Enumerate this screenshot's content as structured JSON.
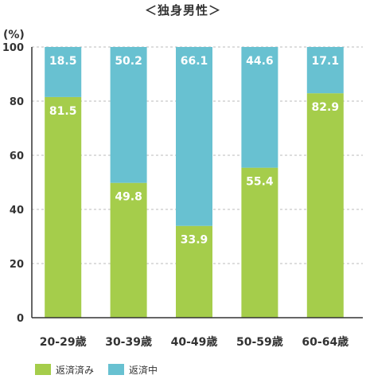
{
  "title": "＜独身男性＞",
  "unit": "(%)",
  "colors": {
    "repaid": "#a5cd4b",
    "repaying": "#68c1d1",
    "grid": "#bbbbbb",
    "axis": "#333333"
  },
  "legend": [
    {
      "label": "返済済み",
      "color": "#a5cd4b"
    },
    {
      "label": "返済中",
      "color": "#68c1d1"
    }
  ],
  "chart_data": {
    "type": "bar",
    "stacked": true,
    "title": "＜独身男性＞",
    "ylabel": "(%)",
    "ylim": [
      0,
      100
    ],
    "yticks": [
      0,
      20,
      40,
      60,
      80,
      100
    ],
    "grid": true,
    "categories": [
      "20-29歳",
      "30-39歳",
      "40-49歳",
      "50-59歳",
      "60-64歳"
    ],
    "series": [
      {
        "name": "返済済み",
        "values": [
          81.5,
          49.8,
          33.9,
          55.4,
          82.9
        ],
        "labels": [
          "81.5",
          "49.8",
          "33.9",
          "55.4",
          "82.9"
        ]
      },
      {
        "name": "返済中",
        "values": [
          18.5,
          50.2,
          66.1,
          44.6,
          17.1
        ],
        "labels": [
          "18.5",
          "50.2",
          "66.1",
          "44.6",
          "17.1"
        ]
      }
    ],
    "legend_position": "bottom-left"
  }
}
